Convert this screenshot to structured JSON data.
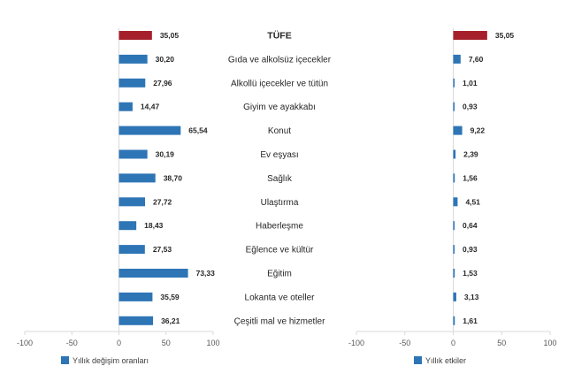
{
  "colors": {
    "highlight": "#A6202B",
    "bar": "#2E75B6",
    "axis": "#D9D9D9",
    "text": "#262626"
  },
  "chart_data": [
    {
      "type": "bar",
      "orientation": "horizontal",
      "categories": [
        "TÜFE",
        "Gıda ve alkolsüz içecekler",
        "Alkollü içecekler ve tütün",
        "Giyim ve ayakkabı",
        "Konut",
        "Ev eşyası",
        "Sağlık",
        "Ulaştırma",
        "Haberleşme",
        "Eğlence ve kültür",
        "Eğitim",
        "Lokanta ve oteller",
        "Çeşitli mal ve hizmetler"
      ],
      "values": [
        35.05,
        30.2,
        27.96,
        14.47,
        65.54,
        30.19,
        38.7,
        27.72,
        18.43,
        27.53,
        73.33,
        35.59,
        36.21
      ],
      "value_labels": [
        "35,05",
        "30,20",
        "27,96",
        "14,47",
        "65,54",
        "30,19",
        "38,70",
        "27,72",
        "18,43",
        "27,53",
        "73,33",
        "35,59",
        "36,21"
      ],
      "xlim": [
        -100,
        100
      ],
      "xticks": [
        "-100",
        "-50",
        "0",
        "50",
        "100"
      ],
      "legend": "Yıllık değişim oranları",
      "legend_position": "bottom",
      "grid": false
    },
    {
      "type": "bar",
      "orientation": "horizontal",
      "categories": [
        "TÜFE",
        "Gıda ve alkolsüz içecekler",
        "Alkollü içecekler ve tütün",
        "Giyim ve ayakkabı",
        "Konut",
        "Ev eşyası",
        "Sağlık",
        "Ulaştırma",
        "Haberleşme",
        "Eğlence ve kültür",
        "Eğitim",
        "Lokanta ve oteller",
        "Çeşitli mal ve hizmetler"
      ],
      "values": [
        35.05,
        7.6,
        1.01,
        0.93,
        9.22,
        2.39,
        1.56,
        4.51,
        0.64,
        0.93,
        1.53,
        3.13,
        1.61
      ],
      "value_labels": [
        "35,05",
        "7,60",
        "1,01",
        "0,93",
        "9,22",
        "2,39",
        "1,56",
        "4,51",
        "0,64",
        "0,93",
        "1,53",
        "3,13",
        "1,61"
      ],
      "xlim": [
        -100,
        100
      ],
      "xticks": [
        "-100",
        "-50",
        "0",
        "50",
        "100"
      ],
      "legend": "Yıllık etkiler",
      "legend_position": "bottom",
      "grid": false
    }
  ]
}
